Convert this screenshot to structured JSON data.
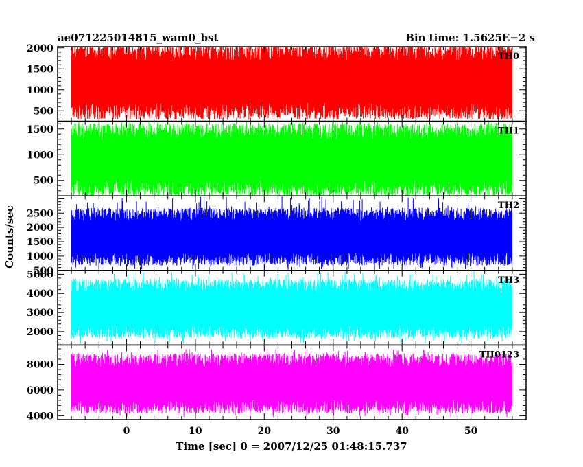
{
  "header": {
    "left_title": "ae071225014815_wam0_bst",
    "right_title": "Bin time: 1.5625E−2 s"
  },
  "axes": {
    "ylabel": "Counts/sec",
    "xlabel": "Time [sec] 0 = 2007/12/25 01:48:15.737"
  },
  "chart_data": {
    "type": "line",
    "title": "ae071225014815_wam0_bst",
    "subtitle": "Bin time: 1.5625E−2 s",
    "xlabel": "Time [sec] 0 = 2007/12/25 01:48:15.737",
    "ylabel": "Counts/sec",
    "xlim": [
      -10,
      58
    ],
    "x_range": [
      -8,
      56
    ],
    "xticks": [
      0,
      10,
      20,
      30,
      40,
      50
    ],
    "grid": false,
    "panels": [
      {
        "name": "TH0",
        "color": "#ff0000",
        "ylim": [
          250,
          2030
        ],
        "yticks": [
          500,
          1000,
          1500,
          2000
        ],
        "low": 500,
        "high": 1900,
        "min": 280,
        "max": 2030
      },
      {
        "name": "TH1",
        "color": "#00ff00",
        "ylim": [
          200,
          1650
        ],
        "yticks": [
          500,
          1000,
          1500
        ],
        "low": 350,
        "high": 1450,
        "min": 200,
        "max": 1650
      },
      {
        "name": "TH2",
        "color": "#0000ff",
        "ylim": [
          500,
          3100
        ],
        "yticks": [
          500,
          1000,
          1500,
          2000,
          2500
        ],
        "low": 900,
        "high": 2450,
        "min": 520,
        "max": 3080
      },
      {
        "name": "TH3",
        "color": "#00ffff",
        "ylim": [
          1300,
          5200
        ],
        "yticks": [
          2000,
          3000,
          4000,
          5000
        ],
        "low": 2000,
        "high": 4400,
        "min": 1350,
        "max": 5150
      },
      {
        "name": "TH0123",
        "color": "#ff00ff",
        "ylim": [
          3700,
          9500
        ],
        "yticks": [
          4000,
          6000,
          8000
        ],
        "low": 4700,
        "high": 8300,
        "min": 3900,
        "max": 9200
      }
    ]
  }
}
